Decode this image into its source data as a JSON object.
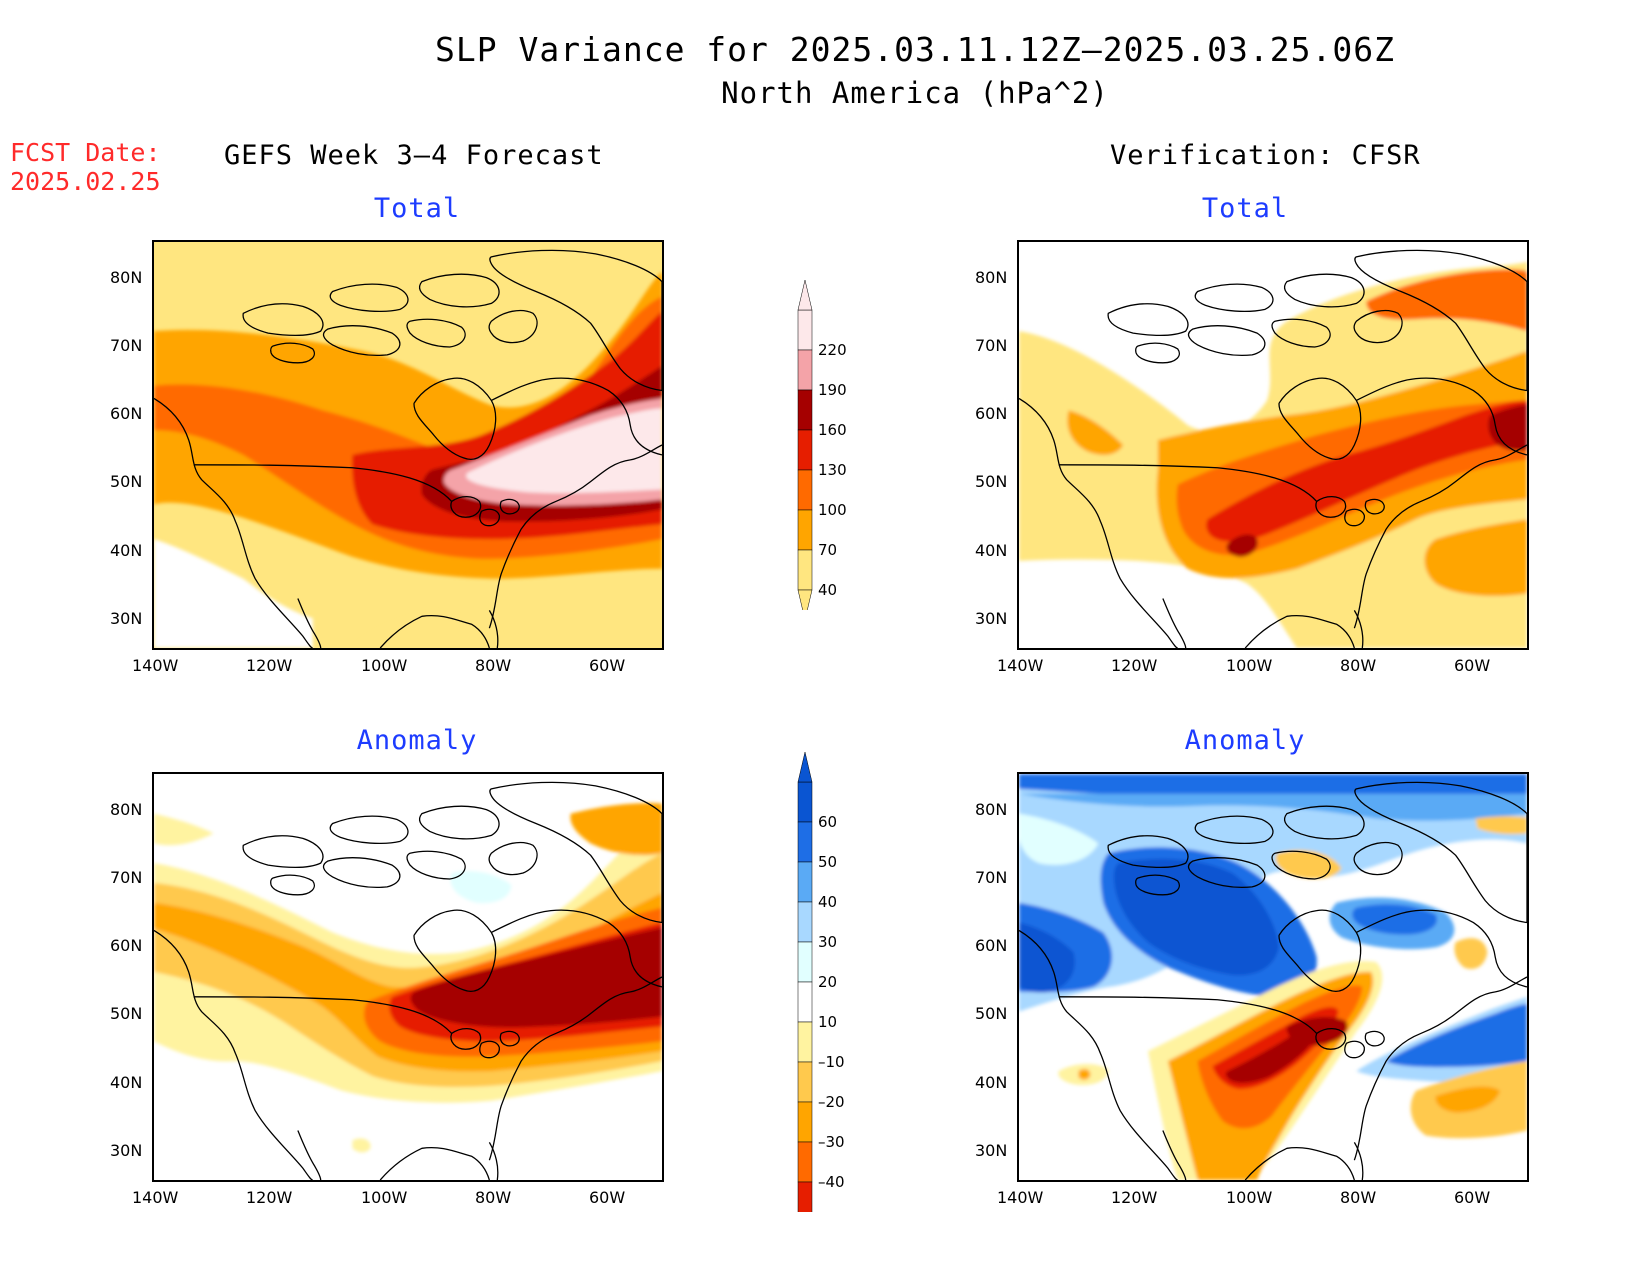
{
  "title": {
    "line1": "SLP Variance for 2025.03.11.12Z–2025.03.25.06Z",
    "line2": "North America (hPa^2)"
  },
  "fcst_date": "FCST Date:\n2025.02.25",
  "columns": {
    "left": "GEFS Week 3–4 Forecast",
    "right": "Verification: CFSR"
  },
  "panels": {
    "top_left": "Total",
    "top_right": "Total",
    "bottom_left": "Anomaly",
    "bottom_right": "Anomaly"
  },
  "axes": {
    "lat_labels": [
      "80N",
      "70N",
      "60N",
      "50N",
      "40N",
      "30N"
    ],
    "lon_labels": [
      "140W",
      "120W",
      "100W",
      "80W",
      "60W"
    ]
  },
  "colorbar_total": {
    "labels": [
      "40",
      "70",
      "100",
      "130",
      "160",
      "190",
      "220"
    ],
    "colors": [
      "#ffe680",
      "#ffa500",
      "#ff6a00",
      "#e61e00",
      "#a50000",
      "#f4a3a8",
      "#fde8ea"
    ]
  },
  "colorbar_anomaly": {
    "labels": [
      "60",
      "50",
      "40",
      "30",
      "20",
      "10",
      "–10",
      "–20",
      "–30",
      "–40"
    ],
    "colors": [
      "#a50000",
      "#e61e00",
      "#ff6a00",
      "#ffa500",
      "#ffc94d",
      "#fff3a0",
      "#ffffff",
      "#e1ffff",
      "#a8d8ff",
      "#5aaaf5",
      "#1e6ee6",
      "#0a55d2"
    ]
  }
}
